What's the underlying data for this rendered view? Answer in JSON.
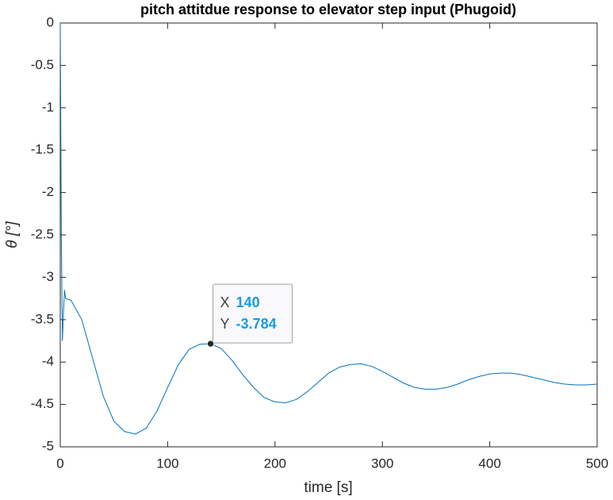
{
  "chart_data": {
    "type": "line",
    "title": "pitch attitdue response to elevator step input (Phugoid)",
    "xlabel": "time [s]",
    "ylabel": "θ [°]",
    "color": "#0072bd",
    "x": [
      0,
      1,
      2,
      3,
      4,
      5,
      10,
      20,
      30,
      40,
      50,
      60,
      70,
      80,
      90,
      100,
      110,
      120,
      130,
      140,
      150,
      160,
      170,
      180,
      190,
      200,
      210,
      220,
      230,
      240,
      250,
      260,
      270,
      280,
      290,
      300,
      310,
      320,
      330,
      340,
      350,
      360,
      370,
      380,
      390,
      400,
      410,
      420,
      430,
      440,
      450,
      460,
      470,
      480,
      490,
      500
    ],
    "values": [
      0,
      -2.5,
      -3.75,
      -3.4,
      -3.15,
      -3.25,
      -3.27,
      -3.5,
      -3.95,
      -4.4,
      -4.7,
      -4.82,
      -4.85,
      -4.78,
      -4.58,
      -4.3,
      -4.03,
      -3.85,
      -3.79,
      -3.784,
      -3.84,
      -3.98,
      -4.15,
      -4.3,
      -4.42,
      -4.47,
      -4.48,
      -4.44,
      -4.35,
      -4.24,
      -4.13,
      -4.06,
      -4.03,
      -4.02,
      -4.05,
      -4.11,
      -4.18,
      -4.25,
      -4.3,
      -4.32,
      -4.32,
      -4.3,
      -4.26,
      -4.21,
      -4.17,
      -4.14,
      -4.13,
      -4.13,
      -4.15,
      -4.18,
      -4.21,
      -4.24,
      -4.26,
      -4.27,
      -4.27,
      -4.26
    ],
    "xlim": [
      0,
      500
    ],
    "ylim": [
      -5,
      0
    ],
    "xticks": [
      0,
      100,
      200,
      300,
      400,
      500
    ],
    "yticks": [
      0,
      -0.5,
      -1,
      -1.5,
      -2,
      -2.5,
      -3,
      -3.5,
      -4,
      -4.5,
      -5
    ],
    "grid": false,
    "datatip": {
      "x_label": "X",
      "x": 140,
      "y_label": "Y",
      "y": -3.784
    }
  }
}
